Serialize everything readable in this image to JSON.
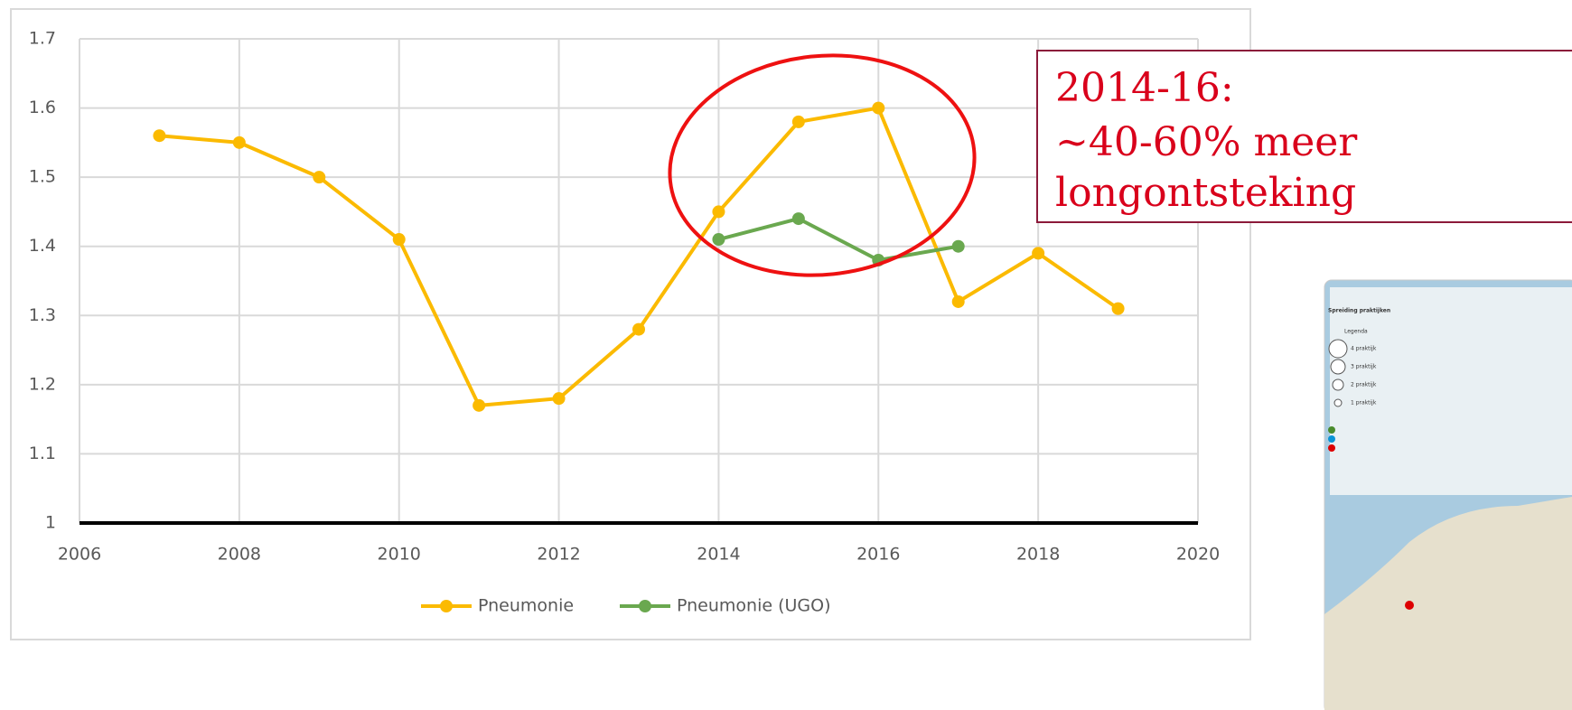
{
  "chart_data": {
    "type": "line",
    "x": [
      2007,
      2008,
      2009,
      2010,
      2011,
      2012,
      2013,
      2014,
      2015,
      2016,
      2017,
      2018,
      2019
    ],
    "series": [
      {
        "name": "Pneumonie",
        "color": "#fbba00",
        "values": [
          1.56,
          1.55,
          1.5,
          1.41,
          1.17,
          1.18,
          1.28,
          1.45,
          1.58,
          1.6,
          1.32,
          1.39,
          1.31
        ]
      },
      {
        "name": "Pneumonie (UGO)",
        "color": "#6aa84f",
        "values": [
          null,
          null,
          null,
          null,
          null,
          null,
          null,
          1.41,
          1.44,
          1.38,
          1.4,
          null,
          null
        ]
      }
    ],
    "xlim": [
      2006,
      2020
    ],
    "xticks": [
      2006,
      2008,
      2010,
      2012,
      2014,
      2016,
      2018,
      2020
    ],
    "ylim": [
      1,
      1.7
    ],
    "yticks": [
      1,
      1.1,
      1.2,
      1.3,
      1.4,
      1.5,
      1.6,
      1.7
    ],
    "grid": true,
    "legend": "bottom",
    "annotation": [
      "2014-16:",
      "~40-60% meer",
      "longontsteking"
    ]
  },
  "inset": {
    "title": "Spreiding praktijken",
    "legend_title": "Legenda",
    "items": [
      "4 praktijk",
      "3 praktijk",
      "2 praktijk",
      "1 praktijk"
    ]
  }
}
